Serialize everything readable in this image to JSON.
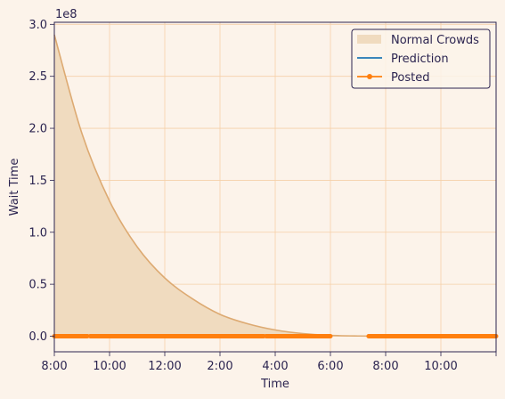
{
  "chart_data": {
    "type": "area",
    "xlabel": "Time",
    "ylabel": "Wait Time",
    "y_scale_label": "1e8",
    "x_range_minutes": [
      0,
      960
    ],
    "ylim": [
      -15000000,
      302000000
    ],
    "x_ticks": [
      {
        "minutes": 0,
        "label": "8:00"
      },
      {
        "minutes": 120,
        "label": "10:00"
      },
      {
        "minutes": 240,
        "label": "12:00"
      },
      {
        "minutes": 360,
        "label": "2:00"
      },
      {
        "minutes": 480,
        "label": "4:00"
      },
      {
        "minutes": 600,
        "label": "6:00"
      },
      {
        "minutes": 720,
        "label": "8:00"
      },
      {
        "minutes": 840,
        "label": "10:00"
      },
      {
        "minutes": 960,
        "label": ""
      }
    ],
    "y_ticks": [
      {
        "value": 0,
        "label": "0.0"
      },
      {
        "value": 50000000,
        "label": "0.5"
      },
      {
        "value": 100000000,
        "label": "1.0"
      },
      {
        "value": 150000000,
        "label": "1.5"
      },
      {
        "value": 200000000,
        "label": "2.0"
      },
      {
        "value": 250000000,
        "label": "2.5"
      },
      {
        "value": 300000000,
        "label": "3.0"
      }
    ],
    "grid": true,
    "legend_position": "top-right",
    "series": [
      {
        "name": "Normal Crowds",
        "kind": "area",
        "color": "#ddaa72",
        "fill": "#f0dbbf",
        "x": [
          0,
          60,
          120,
          180,
          240,
          300,
          360,
          420,
          480,
          540,
          600,
          660,
          720,
          780,
          840,
          900,
          960
        ],
        "y": [
          290000000,
          195000000,
          130000000,
          86000000,
          56000000,
          36000000,
          21000000,
          12000000,
          6000000,
          2500000,
          800000,
          200000,
          0,
          0,
          0,
          0,
          0
        ]
      },
      {
        "name": "Prediction",
        "kind": "line",
        "color": "#1f77b4",
        "x": [],
        "y": []
      },
      {
        "name": "Posted",
        "kind": "line-marker",
        "color": "#ff7f0e",
        "segments": [
          [
            0,
            72
          ],
          [
            78,
            455
          ],
          [
            460,
            600
          ],
          [
            683,
            960
          ]
        ],
        "y_value": 0
      }
    ]
  }
}
